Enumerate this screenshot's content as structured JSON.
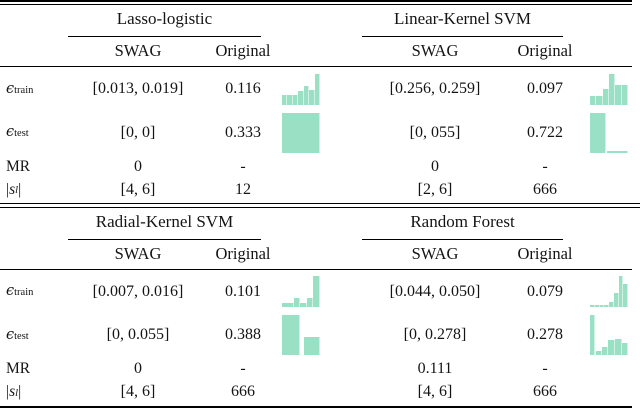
{
  "colors": {
    "hist_fill": "#99e0c5",
    "rule": "#000000"
  },
  "row_labels": [
    {
      "symbol": "ϵ",
      "sub": "train"
    },
    {
      "symbol": "ϵ",
      "sub": "test"
    },
    {
      "symbol": "MR",
      "sub": ""
    },
    {
      "open": "|",
      "symbol": "s",
      "sub": "l",
      "close": "|"
    }
  ],
  "tables": [
    {
      "groups": [
        {
          "title": "Lasso-logistic",
          "col_headers": [
            "SWAG",
            "Original"
          ],
          "rows": [
            {
              "swag": "[0.013, 0.019]",
              "original": "0.116"
            },
            {
              "swag": "[0, 0]",
              "original": "0.333"
            },
            {
              "swag": "0",
              "original": "-"
            },
            {
              "swag": "[4, 6]",
              "original": "12"
            }
          ],
          "histograms": {
            "train": {
              "bars": [
                {
                  "w": 1,
                  "h": 0.3
                },
                {
                  "w": 1,
                  "h": 0.3
                },
                {
                  "w": 1,
                  "h": 0.3
                },
                {
                  "w": 1,
                  "h": 0.44
                },
                {
                  "w": 1,
                  "h": 0.6
                },
                {
                  "w": 1,
                  "h": 0.47
                },
                {
                  "w": 1,
                  "h": 1.0
                }
              ]
            },
            "test": {
              "bars": [
                {
                  "w": 1,
                  "h": 1.0
                }
              ]
            }
          }
        },
        {
          "title": "Linear-Kernel SVM",
          "col_headers": [
            "SWAG",
            "Original"
          ],
          "rows": [
            {
              "swag": "[0.256, 0.259]",
              "original": "0.097"
            },
            {
              "swag": "[0, 055]",
              "original": "0.722"
            },
            {
              "swag": "0",
              "original": "-"
            },
            {
              "swag": "[2, 6]",
              "original": "666"
            }
          ],
          "histograms": {
            "train": {
              "bars": [
                {
                  "w": 1,
                  "h": 0.27
                },
                {
                  "w": 1,
                  "h": 0.27
                },
                {
                  "w": 1,
                  "h": 0.5
                },
                {
                  "w": 1,
                  "h": 1.0
                },
                {
                  "w": 1,
                  "h": 0.62
                },
                {
                  "w": 1,
                  "h": 0.62
                }
              ]
            },
            "test": {
              "bars": [
                {
                  "w": 0.42,
                  "h": 1.0
                },
                {
                  "w": 0.03,
                  "h": 0
                },
                {
                  "w": 0.55,
                  "h": 0.05
                }
              ]
            }
          }
        }
      ]
    },
    {
      "groups": [
        {
          "title": "Radial-Kernel SVM",
          "col_headers": [
            "SWAG",
            "Original"
          ],
          "rows": [
            {
              "swag": "[0.007, 0.016]",
              "original": "0.101"
            },
            {
              "swag": "[0, 0.055]",
              "original": "0.388"
            },
            {
              "swag": "0",
              "original": "-"
            },
            {
              "swag": "[4, 6]",
              "original": "666"
            }
          ],
          "histograms": {
            "train": {
              "bars": [
                {
                  "w": 2,
                  "h": 0.12
                },
                {
                  "w": 1,
                  "h": 0.28
                },
                {
                  "w": 1,
                  "h": 0.12
                },
                {
                  "w": 1,
                  "h": 0.3
                },
                {
                  "w": 1.2,
                  "h": 1.0
                }
              ]
            },
            "test": {
              "bars": [
                {
                  "w": 1,
                  "h": 1.0
                },
                {
                  "w": 0.22,
                  "h": 0
                },
                {
                  "w": 0.9,
                  "h": 0.45
                }
              ]
            }
          }
        },
        {
          "title": "Random Forest",
          "col_headers": [
            "SWAG",
            "Original"
          ],
          "rows": [
            {
              "swag": "[0.044, 0.050]",
              "original": "0.079"
            },
            {
              "swag": "[0, 0.278]",
              "original": "0.278"
            },
            {
              "swag": "0.111",
              "original": "-"
            },
            {
              "swag": "[4, 6]",
              "original": "666"
            }
          ],
          "histograms": {
            "train": {
              "bars": [
                {
                  "w": 1,
                  "h": 0.07
                },
                {
                  "w": 1,
                  "h": 0.07
                },
                {
                  "w": 1,
                  "h": 0.07
                },
                {
                  "w": 1,
                  "h": 0.07
                },
                {
                  "w": 1,
                  "h": 0.18
                },
                {
                  "w": 1,
                  "h": 0.45
                },
                {
                  "w": 1,
                  "h": 1.0
                },
                {
                  "w": 1,
                  "h": 0.76
                }
              ]
            },
            "test": {
              "bars": [
                {
                  "w": 0.8,
                  "h": 1.0
                },
                {
                  "w": 0.3,
                  "h": 0
                },
                {
                  "w": 1,
                  "h": 0.1
                },
                {
                  "w": 1.1,
                  "h": 0.2
                },
                {
                  "w": 1.2,
                  "h": 0.38
                },
                {
                  "w": 1.2,
                  "h": 0.4
                },
                {
                  "w": 1.1,
                  "h": 0.3
                }
              ]
            }
          }
        }
      ]
    }
  ]
}
